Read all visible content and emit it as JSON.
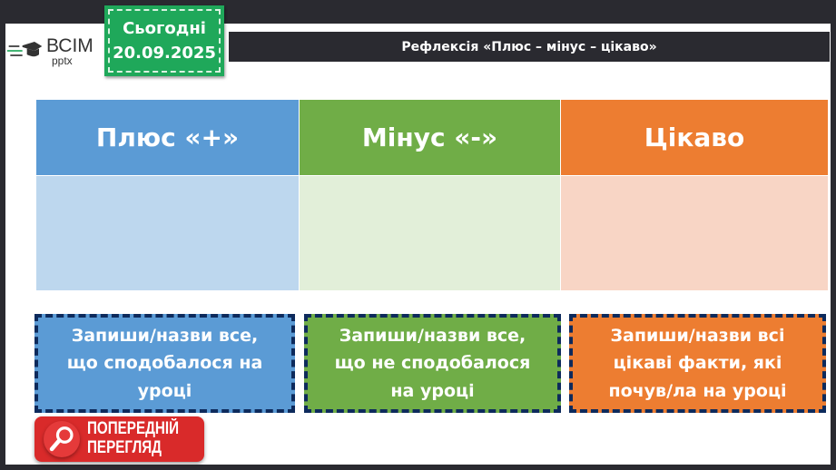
{
  "logo": {
    "text": "ВСІМ",
    "sub": "pptx"
  },
  "date": {
    "label": "Сьогодні",
    "value": "20.09.2025"
  },
  "title": "Рефлексія «Плюс – мінус – цікаво»",
  "columns": [
    {
      "header": "Плюс «+»",
      "header_color": "#5b9bd5",
      "body_color": "#bdd7ee",
      "note": "Запиши/назви все, що сподобалося на уроці",
      "note_color": "#5b9bd5"
    },
    {
      "header": "Мінус «-»",
      "header_color": "#70ad47",
      "body_color": "#e2efd9",
      "note": "Запиши/назви все, що не сподобалося на уроці",
      "note_color": "#70ad47"
    },
    {
      "header": "Цікаво",
      "header_color": "#ed7d31",
      "body_color": "#f8d5c5",
      "note": "Запиши/назви всі цікаві факти, які почув/ла на уроці",
      "note_color": "#ed7d31"
    }
  ],
  "preview": {
    "label": "ПОПЕРЕДНІЙ ПЕРЕГЛЯД"
  }
}
